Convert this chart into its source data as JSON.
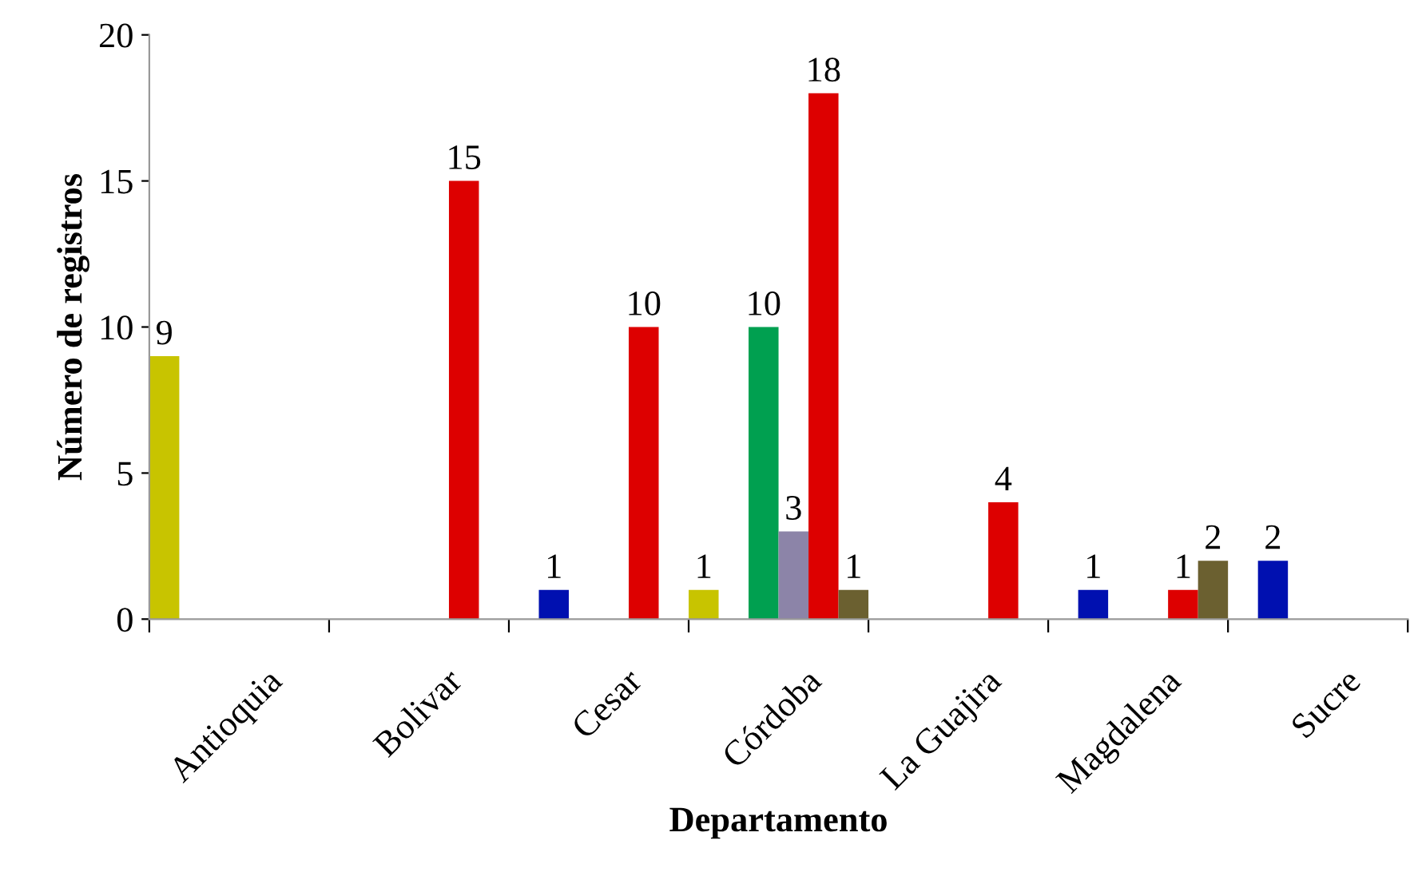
{
  "chart_data": {
    "type": "bar",
    "xlabel": "Departamento",
    "ylabel": "Número de registros",
    "categories": [
      "Antioquia",
      "Bolivar",
      "Cesar",
      "Córdoba",
      "La Guajira",
      "Magdalena",
      "Sucre"
    ],
    "series": [
      {
        "color": "#c8c400",
        "values": [
          9,
          null,
          null,
          1,
          null,
          null,
          null
        ]
      },
      {
        "color": "#0010b0",
        "values": [
          null,
          null,
          1,
          null,
          null,
          1,
          2
        ]
      },
      {
        "color": "#00a050",
        "values": [
          null,
          null,
          null,
          10,
          null,
          null,
          null
        ]
      },
      {
        "color": "#8c84a8",
        "values": [
          null,
          null,
          null,
          3,
          null,
          null,
          null
        ]
      },
      {
        "color": "#dd0000",
        "values": [
          null,
          15,
          10,
          18,
          4,
          1,
          null
        ]
      },
      {
        "color": "#6b6030",
        "values": [
          null,
          null,
          null,
          1,
          null,
          2,
          null
        ]
      }
    ],
    "ylim": [
      0,
      20
    ],
    "yticks": [
      0,
      5,
      10,
      15,
      20
    ],
    "grid": false,
    "data_labels": true
  }
}
